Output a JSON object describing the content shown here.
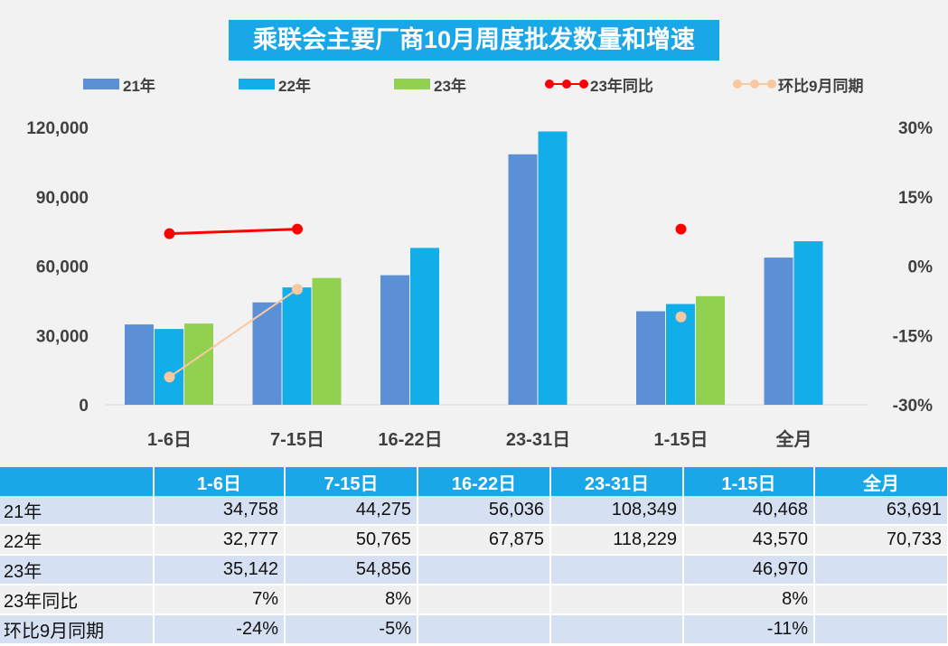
{
  "title": "乘联会主要厂商10月周度批发数量和增速",
  "colors": {
    "title_bg": "#1aa7e8",
    "bar_21": "#5b8fd6",
    "bar_22": "#12aeea",
    "bar_23": "#92d050",
    "yoy_line": "#ff0000",
    "mom_line": "#f8c9a0",
    "table_header": "#1aa7e8",
    "table_row_odd": "#d5e0f2",
    "table_row_even": "#f0f0f0"
  },
  "legend": [
    {
      "label": "21年",
      "kind": "bar",
      "color": "#5b8fd6"
    },
    {
      "label": "22年",
      "kind": "bar",
      "color": "#12aeea"
    },
    {
      "label": "23年",
      "kind": "bar",
      "color": "#92d050"
    },
    {
      "label": "23年同比",
      "kind": "line",
      "color": "#ff0000"
    },
    {
      "label": "环比9月同期",
      "kind": "line",
      "color": "#f8c9a0"
    }
  ],
  "chart_data": {
    "type": "bar",
    "title": "乘联会主要厂商10月周度批发数量和增速",
    "categories": [
      "1-6日",
      "7-15日",
      "16-22日",
      "23-31日",
      "1-15日",
      "全月"
    ],
    "series": [
      {
        "name": "21年",
        "type": "bar",
        "axis": "left",
        "values": [
          34758,
          44275,
          56036,
          108349,
          40468,
          63691
        ]
      },
      {
        "name": "22年",
        "type": "bar",
        "axis": "left",
        "values": [
          32777,
          50765,
          67875,
          118229,
          43570,
          70733
        ]
      },
      {
        "name": "23年",
        "type": "bar",
        "axis": "left",
        "values": [
          35142,
          54856,
          null,
          null,
          46970,
          null
        ]
      },
      {
        "name": "23年同比",
        "type": "line",
        "axis": "right",
        "values": [
          0.07,
          0.08,
          null,
          null,
          0.08,
          null
        ]
      },
      {
        "name": "环比9月同期",
        "type": "line",
        "axis": "right",
        "values": [
          -0.24,
          -0.05,
          null,
          null,
          -0.11,
          null
        ]
      }
    ],
    "ylim": [
      0,
      120000
    ],
    "y_ticks": [
      "0",
      "30,000",
      "60,000",
      "90,000",
      "120,000"
    ],
    "y2lim": [
      -0.3,
      0.3
    ],
    "y2_ticks": [
      "-30%",
      "-15%",
      "0%",
      "15%",
      "30%"
    ],
    "legend_position": "top",
    "grid": false
  },
  "table": {
    "headers": [
      "",
      "1-6日",
      "7-15日",
      "16-22日",
      "23-31日",
      "1-15日",
      "全月"
    ],
    "rows": [
      {
        "label": "21年",
        "cells": [
          "34,758",
          "44,275",
          "56,036",
          "108,349",
          "40,468",
          "63,691"
        ]
      },
      {
        "label": "22年",
        "cells": [
          "32,777",
          "50,765",
          "67,875",
          "118,229",
          "43,570",
          "70,733"
        ]
      },
      {
        "label": "23年",
        "cells": [
          "35,142",
          "54,856",
          "",
          "",
          "46,970",
          ""
        ]
      },
      {
        "label": "23年同比",
        "cells": [
          "7%",
          "8%",
          "",
          "",
          "8%",
          ""
        ]
      },
      {
        "label": "环比9月同期",
        "cells": [
          "-24%",
          "-5%",
          "",
          "",
          "-11%",
          ""
        ]
      }
    ]
  }
}
